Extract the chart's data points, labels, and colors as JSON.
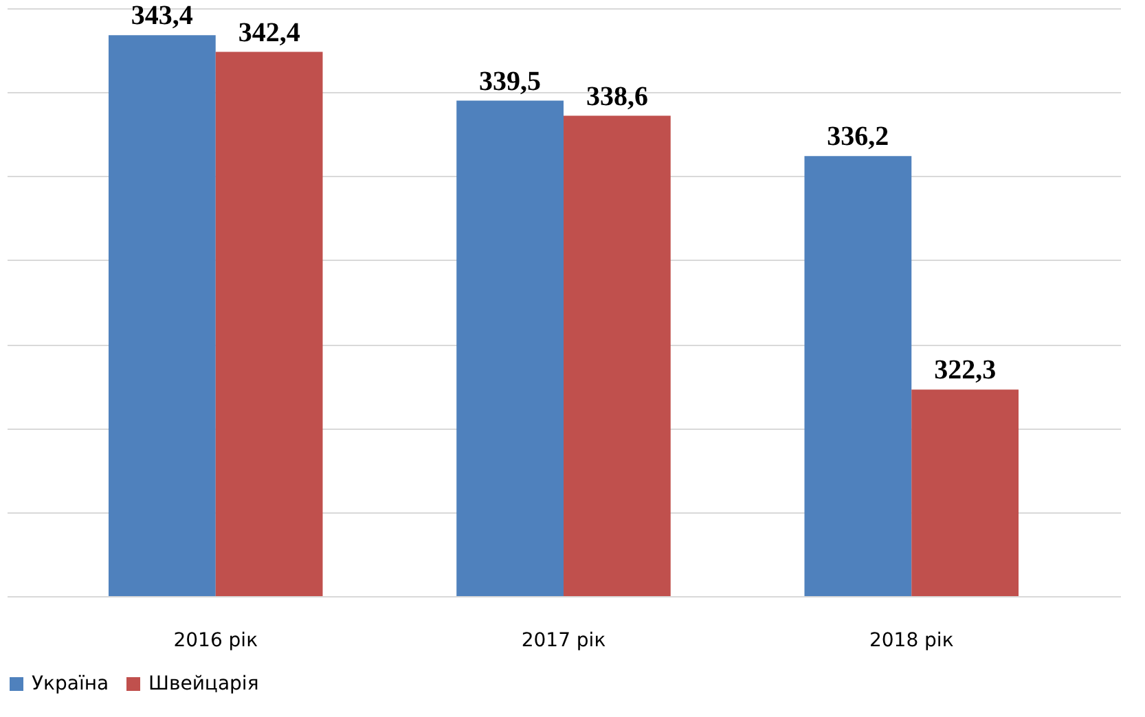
{
  "chart_data": {
    "type": "bar",
    "categories": [
      "2016 рік",
      "2017 рік",
      "2018 рік"
    ],
    "series": [
      {
        "name": "Україна",
        "color": "#4f81bd",
        "values": [
          343.4,
          339.5,
          336.2
        ],
        "value_labels": [
          "343,4",
          "339,5",
          "336,2"
        ]
      },
      {
        "name": "Швейцарія",
        "color": "#c0504d",
        "values": [
          342.4,
          338.6,
          322.3
        ],
        "value_labels": [
          "342,4",
          "338,6",
          "322,3"
        ]
      }
    ],
    "ylim": [
      310,
      345
    ],
    "yticks": [
      {
        "value": 310,
        "label": null
      },
      {
        "value": 315,
        "label": null
      },
      {
        "value": 320,
        "label": null
      },
      {
        "value": 325,
        "label": null
      },
      {
        "value": 330,
        "label": null
      },
      {
        "value": 335,
        "label": null
      },
      {
        "value": 340,
        "label": null
      },
      {
        "value": 345,
        "label": null
      }
    ],
    "grid": "y",
    "tick_labels": "x",
    "legend": "bottom"
  }
}
